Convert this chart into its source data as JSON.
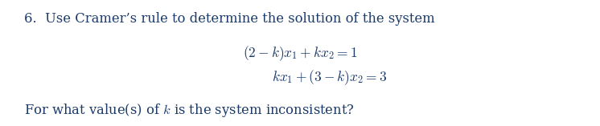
{
  "background_color": "#ffffff",
  "fig_width": 7.46,
  "fig_height": 1.57,
  "dpi": 100,
  "text_color": "#1a3a6b",
  "line1": "6.  Use Cramer’s rule to determine the solution of the system",
  "eq1": "$(2-k)x_1+kx_2 = 1$",
  "eq2": "$kx_1+(3-k)x_2 = 3$",
  "footer": "For what value(s) of $k$ is the system inconsistent?",
  "fontsize_main": 11.8,
  "fontsize_eq": 12.5,
  "fontsize_footer": 11.8
}
